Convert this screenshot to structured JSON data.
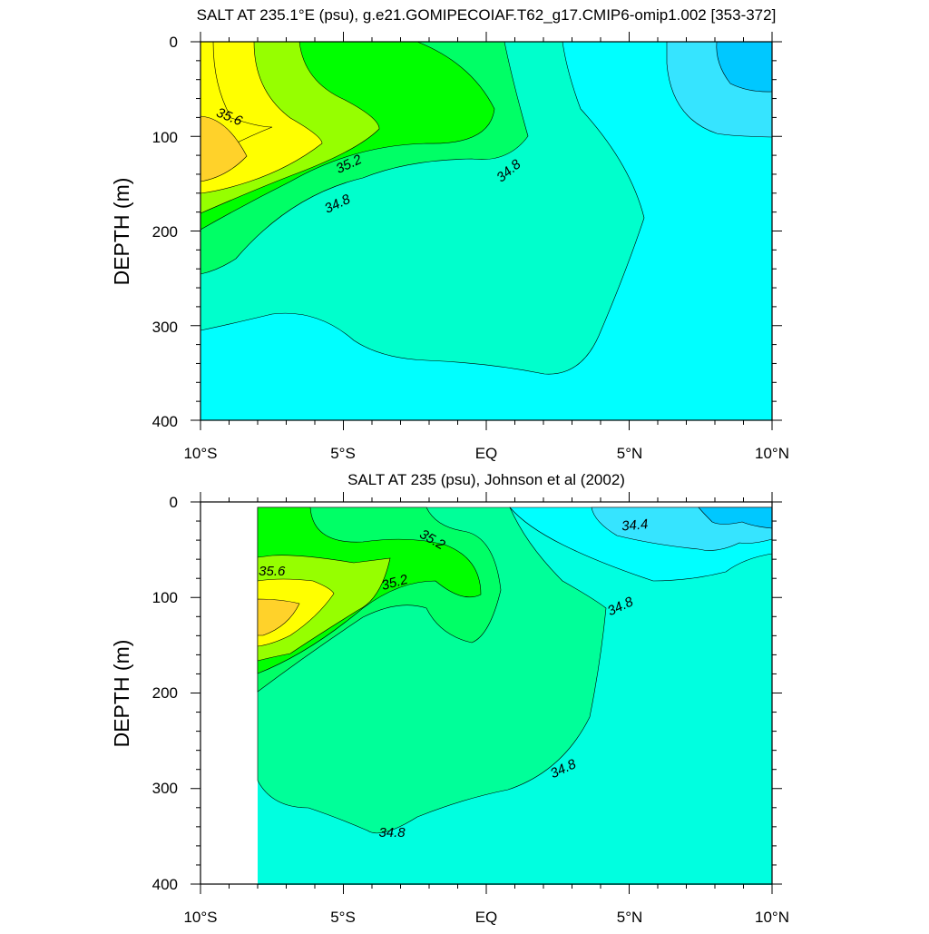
{
  "chart_data": [
    {
      "type": "contour",
      "title": "SALT AT 235.1°E (psu), g.e21.GOMIPECOIAF.T62_g17.CMIP6-omip1.002 [353-372]",
      "ylabel": "DEPTH (m)",
      "xlabel": "",
      "x_ticks": [
        "10°S",
        "5°S",
        "EQ",
        "5°N",
        "10°N"
      ],
      "x_tick_values": [
        -10,
        -5,
        0,
        5,
        10
      ],
      "xlim": [
        -10,
        10
      ],
      "y_ticks": [
        "0",
        "100",
        "200",
        "300",
        "400"
      ],
      "y_tick_values": [
        0,
        100,
        200,
        300,
        400
      ],
      "ylim": [
        0,
        400
      ],
      "y_inverted": true,
      "contour_interval": 0.2,
      "contour_labels": [
        {
          "text": "35.6",
          "lat": -9.0,
          "depth": 80,
          "angle": 22
        },
        {
          "text": "35.2",
          "lat": -4.8,
          "depth": 130,
          "angle": -25
        },
        {
          "text": "34.8",
          "lat": -5.2,
          "depth": 172,
          "angle": -25
        },
        {
          "text": "34.8",
          "lat": 0.8,
          "depth": 137,
          "angle": -40
        }
      ],
      "levels": [
        {
          "value": 34.0,
          "color": "#00c8ff",
          "fill": [
            [
              0,
              0
            ],
            [
              10,
              0
            ],
            [
              10,
              22
            ],
            [
              10,
              58
            ],
            [
              8.0,
              50
            ],
            [
              6.5,
              5
            ],
            [
              6.5,
              0
            ],
            [
              0,
              0
            ]
          ]
        }
      ]
    },
    {
      "type": "contour",
      "title": "SALT AT 235 (psu), Johnson et al (2002)",
      "ylabel": "DEPTH (m)",
      "xlabel": "",
      "x_ticks": [
        "10°S",
        "5°S",
        "EQ",
        "5°N",
        "10°N"
      ],
      "x_tick_values": [
        -10,
        -5,
        0,
        5,
        10
      ],
      "xlim": [
        -10,
        10
      ],
      "y_ticks": [
        "0",
        "100",
        "200",
        "300",
        "400"
      ],
      "y_tick_values": [
        0,
        100,
        200,
        300,
        400
      ],
      "ylim": [
        0,
        400
      ],
      "y_inverted": true,
      "contour_interval": 0.2,
      "data_start_lat": -8,
      "contour_labels": [
        {
          "text": "35.2",
          "lat": -1.9,
          "depth": 40,
          "angle": 30
        },
        {
          "text": "35.6",
          "lat": -7.5,
          "depth": 73,
          "angle": 0
        },
        {
          "text": "35.2",
          "lat": -3.2,
          "depth": 85,
          "angle": -15
        },
        {
          "text": "34.4",
          "lat": 5.2,
          "depth": 25,
          "angle": -5
        },
        {
          "text": "34.8",
          "lat": 4.7,
          "depth": 110,
          "angle": -25
        },
        {
          "text": "34.8",
          "lat": 2.7,
          "depth": 280,
          "angle": -25
        },
        {
          "text": "34.8",
          "lat": -3.3,
          "depth": 347,
          "angle": 0
        }
      ]
    }
  ]
}
